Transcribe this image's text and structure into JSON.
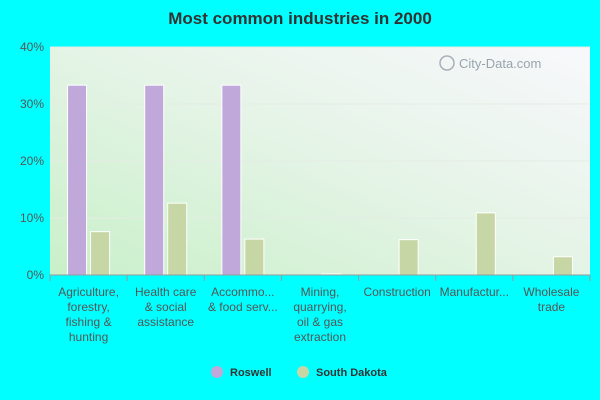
{
  "chart_data": {
    "type": "bar",
    "title": "Most common industries in 2000",
    "categories": [
      [
        "Agriculture,",
        "forestry,",
        "fishing &",
        "hunting"
      ],
      [
        "Health care",
        "& social",
        "assistance"
      ],
      [
        "Accommo...",
        "& food serv..."
      ],
      [
        "Mining,",
        "quarrying,",
        "oil & gas",
        "extraction"
      ],
      [
        "Construction"
      ],
      [
        "Manufactur..."
      ],
      [
        "Wholesale",
        "trade"
      ]
    ],
    "series": [
      {
        "name": "Roswell",
        "color": "#c0a8db",
        "values": [
          33.3,
          33.3,
          33.3,
          0,
          0,
          0,
          0
        ]
      },
      {
        "name": "South Dakota",
        "color": "#c7d6a5",
        "values": [
          7.6,
          12.6,
          6.3,
          0.2,
          6.2,
          10.9,
          3.2
        ]
      }
    ],
    "yticks": [
      "0%",
      "10%",
      "20%",
      "30%",
      "40%"
    ],
    "ylim": [
      0,
      40
    ],
    "grid": true,
    "legend_position": "bottom-center",
    "watermark": "City-Data.com"
  }
}
